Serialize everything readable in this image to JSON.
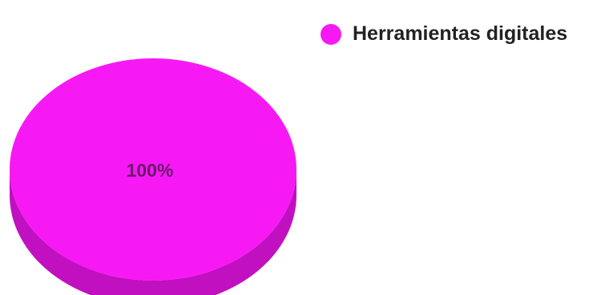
{
  "chart_data": {
    "type": "pie",
    "categories": [
      "Herramientas digitales"
    ],
    "values": [
      100
    ],
    "data_labels": [
      "100%"
    ],
    "colors": [
      "#f719f4"
    ],
    "side_color": "#c010c0",
    "label_color": "#6a1a6a",
    "legend_position": "top-right",
    "style": "3d"
  }
}
